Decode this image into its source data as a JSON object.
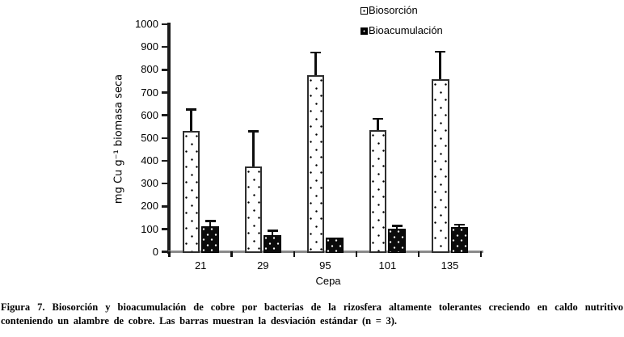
{
  "figure": {
    "caption_line1": "Figura 7. Biosorción y bioacumulación de cobre por bacterias de la rizosfera altamente tolerantes creciendo en caldo nutritivo",
    "caption_line2": "conteniendo un alambre de cobre. Las barras muestran la desviación estándar (n = 3)."
  },
  "chart_data": {
    "type": "bar",
    "title": "",
    "categories": [
      "21",
      "29",
      "95",
      "101",
      "135"
    ],
    "series": [
      {
        "name": "Biosorción",
        "style": "white-stippled",
        "values": [
          530,
          375,
          775,
          535,
          760
        ],
        "errors": [
          95,
          155,
          100,
          50,
          120
        ]
      },
      {
        "name": "Bioacumulación",
        "style": "solid-black",
        "values": [
          113,
          75,
          62,
          102,
          110
        ],
        "errors": [
          22,
          18,
          0,
          13,
          9
        ]
      }
    ],
    "xlabel": "Cepa",
    "ylabel": "mg Cu g⁻¹ biomasa seca",
    "ylim": [
      0,
      1000
    ],
    "ytick_step": 100,
    "grid": false,
    "legend_position": "top-right",
    "error_bars": "upper only, cap style"
  }
}
